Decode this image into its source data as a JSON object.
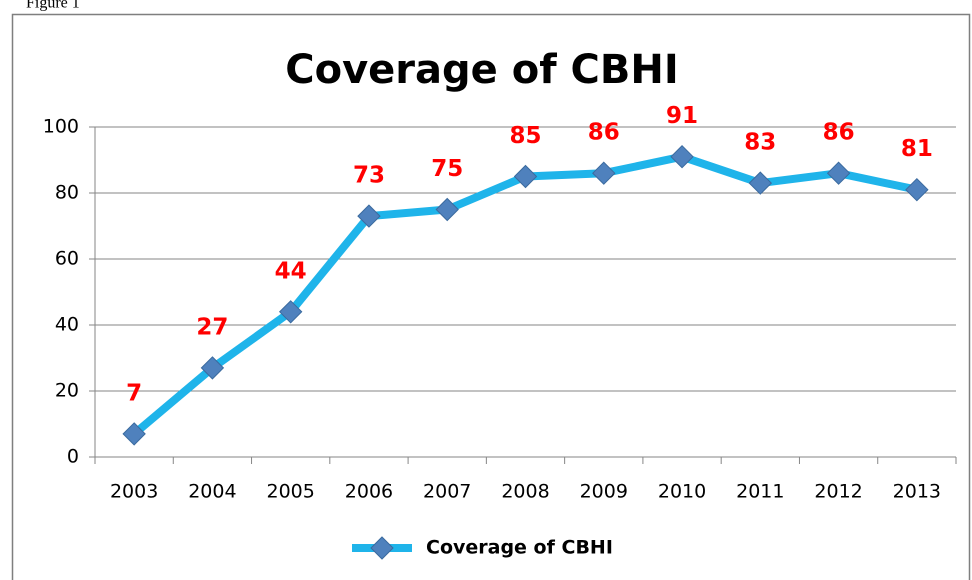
{
  "caption": "Figure 1",
  "chart_data": {
    "type": "line",
    "title": "Coverage of CBHI",
    "categories": [
      "2003",
      "2004",
      "2005",
      "2006",
      "2007",
      "2008",
      "2009",
      "2010",
      "2011",
      "2012",
      "2013"
    ],
    "series": [
      {
        "name": "Coverage of CBHI",
        "color": "#1fb4ea",
        "marker_color": "#4f81bd",
        "values": [
          7,
          27,
          44,
          73,
          75,
          85,
          86,
          91,
          83,
          86,
          81
        ]
      }
    ],
    "label_color": "#ff0000",
    "ylim": [
      0,
      100
    ],
    "yticks": [
      0,
      20,
      40,
      60,
      80,
      100
    ],
    "grid": true,
    "legend": "bottom"
  }
}
